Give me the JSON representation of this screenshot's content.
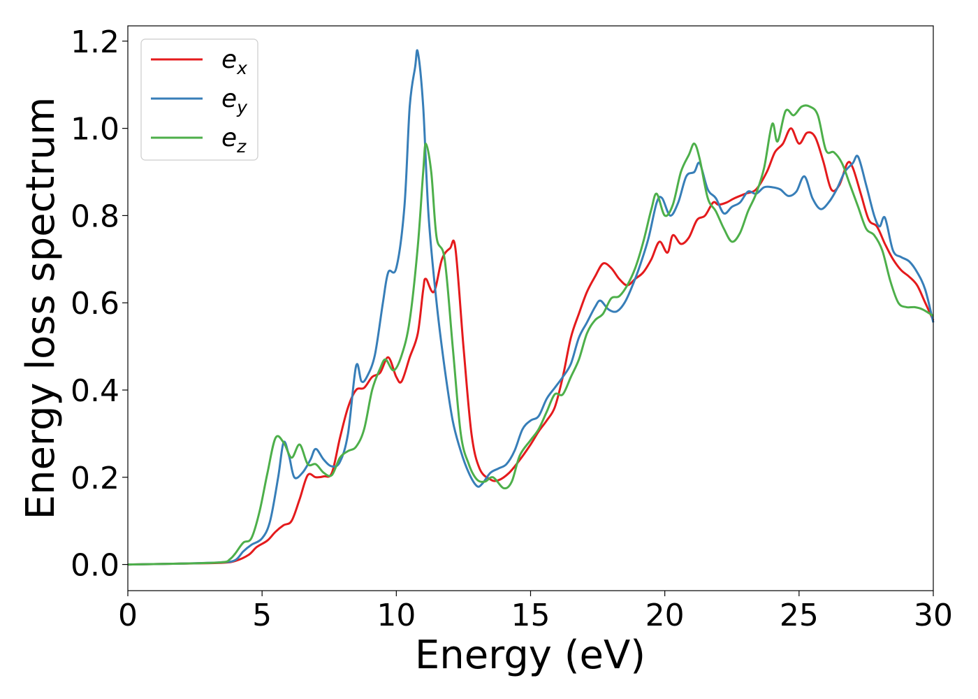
{
  "chart_data": {
    "type": "line",
    "title": "",
    "xlabel": "Energy (eV)",
    "ylabel": "Energy loss spectrum",
    "xlim": [
      0,
      30
    ],
    "ylim": [
      -0.06,
      1.235
    ],
    "xticks": [
      0,
      5,
      10,
      15,
      20,
      25,
      30
    ],
    "yticks": [
      0.0,
      0.2,
      0.4,
      0.6,
      0.8,
      1.0,
      1.2
    ],
    "xtick_labels": [
      "0",
      "5",
      "10",
      "15",
      "20",
      "25",
      "30"
    ],
    "ytick_labels": [
      "0.0",
      "0.2",
      "0.4",
      "0.6",
      "0.8",
      "1.0",
      "1.2"
    ],
    "grid": false,
    "legend_position": "top-left",
    "series": [
      {
        "name_base": "e",
        "name_sub": "x",
        "color": "#e41a1c",
        "points": [
          [
            0,
            0.0
          ],
          [
            2,
            0.002
          ],
          [
            3.5,
            0.004
          ],
          [
            4.0,
            0.008
          ],
          [
            4.5,
            0.022
          ],
          [
            4.8,
            0.04
          ],
          [
            5.2,
            0.055
          ],
          [
            5.5,
            0.075
          ],
          [
            5.8,
            0.09
          ],
          [
            6.1,
            0.1
          ],
          [
            6.4,
            0.15
          ],
          [
            6.7,
            0.205
          ],
          [
            7.0,
            0.2
          ],
          [
            7.3,
            0.202
          ],
          [
            7.6,
            0.21
          ],
          [
            7.9,
            0.29
          ],
          [
            8.2,
            0.36
          ],
          [
            8.5,
            0.4
          ],
          [
            8.8,
            0.405
          ],
          [
            9.1,
            0.43
          ],
          [
            9.4,
            0.44
          ],
          [
            9.7,
            0.475
          ],
          [
            10.0,
            0.43
          ],
          [
            10.2,
            0.42
          ],
          [
            10.5,
            0.475
          ],
          [
            10.8,
            0.53
          ],
          [
            11.0,
            0.63
          ],
          [
            11.1,
            0.655
          ],
          [
            11.4,
            0.625
          ],
          [
            11.7,
            0.7
          ],
          [
            12.0,
            0.725
          ],
          [
            12.2,
            0.725
          ],
          [
            12.5,
            0.5
          ],
          [
            12.8,
            0.3
          ],
          [
            13.1,
            0.22
          ],
          [
            13.5,
            0.195
          ],
          [
            13.8,
            0.193
          ],
          [
            14.2,
            0.21
          ],
          [
            14.6,
            0.24
          ],
          [
            15.0,
            0.275
          ],
          [
            15.3,
            0.305
          ],
          [
            15.6,
            0.33
          ],
          [
            15.9,
            0.36
          ],
          [
            16.2,
            0.43
          ],
          [
            16.5,
            0.52
          ],
          [
            16.8,
            0.575
          ],
          [
            17.1,
            0.625
          ],
          [
            17.4,
            0.66
          ],
          [
            17.7,
            0.69
          ],
          [
            18.0,
            0.68
          ],
          [
            18.3,
            0.655
          ],
          [
            18.6,
            0.64
          ],
          [
            18.9,
            0.655
          ],
          [
            19.2,
            0.67
          ],
          [
            19.5,
            0.7
          ],
          [
            19.8,
            0.74
          ],
          [
            20.1,
            0.715
          ],
          [
            20.3,
            0.755
          ],
          [
            20.6,
            0.735
          ],
          [
            20.9,
            0.75
          ],
          [
            21.2,
            0.79
          ],
          [
            21.5,
            0.8
          ],
          [
            21.8,
            0.83
          ],
          [
            22.0,
            0.825
          ],
          [
            22.3,
            0.83
          ],
          [
            22.6,
            0.84
          ],
          [
            23.0,
            0.85
          ],
          [
            23.4,
            0.86
          ],
          [
            23.8,
            0.9
          ],
          [
            24.1,
            0.945
          ],
          [
            24.4,
            0.965
          ],
          [
            24.7,
            1.0
          ],
          [
            25.0,
            0.965
          ],
          [
            25.3,
            0.99
          ],
          [
            25.6,
            0.98
          ],
          [
            25.9,
            0.925
          ],
          [
            26.2,
            0.86
          ],
          [
            26.5,
            0.87
          ],
          [
            26.8,
            0.92
          ],
          [
            27.0,
            0.91
          ],
          [
            27.3,
            0.85
          ],
          [
            27.6,
            0.79
          ],
          [
            27.9,
            0.775
          ],
          [
            28.2,
            0.735
          ],
          [
            28.5,
            0.7
          ],
          [
            28.8,
            0.675
          ],
          [
            29.1,
            0.66
          ],
          [
            29.4,
            0.64
          ],
          [
            29.7,
            0.6
          ],
          [
            30.0,
            0.56
          ]
        ]
      },
      {
        "name_base": "e",
        "name_sub": "y",
        "color": "#377eb8",
        "points": [
          [
            0,
            0.0
          ],
          [
            2,
            0.002
          ],
          [
            3.5,
            0.005
          ],
          [
            4.0,
            0.01
          ],
          [
            4.3,
            0.03
          ],
          [
            4.6,
            0.045
          ],
          [
            5.0,
            0.06
          ],
          [
            5.3,
            0.1
          ],
          [
            5.6,
            0.2
          ],
          [
            5.8,
            0.28
          ],
          [
            6.0,
            0.25
          ],
          [
            6.2,
            0.2
          ],
          [
            6.5,
            0.21
          ],
          [
            6.8,
            0.24
          ],
          [
            7.0,
            0.265
          ],
          [
            7.3,
            0.24
          ],
          [
            7.6,
            0.225
          ],
          [
            7.9,
            0.235
          ],
          [
            8.2,
            0.3
          ],
          [
            8.5,
            0.455
          ],
          [
            8.7,
            0.42
          ],
          [
            8.9,
            0.43
          ],
          [
            9.2,
            0.48
          ],
          [
            9.5,
            0.6
          ],
          [
            9.7,
            0.67
          ],
          [
            10.0,
            0.68
          ],
          [
            10.3,
            0.82
          ],
          [
            10.5,
            1.05
          ],
          [
            10.7,
            1.14
          ],
          [
            10.8,
            1.175
          ],
          [
            11.0,
            1.05
          ],
          [
            11.2,
            0.8
          ],
          [
            11.5,
            0.6
          ],
          [
            11.8,
            0.45
          ],
          [
            12.1,
            0.33
          ],
          [
            12.4,
            0.26
          ],
          [
            12.7,
            0.21
          ],
          [
            13.0,
            0.18
          ],
          [
            13.2,
            0.185
          ],
          [
            13.5,
            0.21
          ],
          [
            13.8,
            0.22
          ],
          [
            14.1,
            0.23
          ],
          [
            14.4,
            0.26
          ],
          [
            14.7,
            0.31
          ],
          [
            15.0,
            0.33
          ],
          [
            15.3,
            0.34
          ],
          [
            15.6,
            0.38
          ],
          [
            15.9,
            0.405
          ],
          [
            16.2,
            0.43
          ],
          [
            16.5,
            0.46
          ],
          [
            16.8,
            0.52
          ],
          [
            17.1,
            0.555
          ],
          [
            17.4,
            0.59
          ],
          [
            17.6,
            0.605
          ],
          [
            17.9,
            0.585
          ],
          [
            18.2,
            0.58
          ],
          [
            18.5,
            0.6
          ],
          [
            18.8,
            0.64
          ],
          [
            19.1,
            0.69
          ],
          [
            19.4,
            0.75
          ],
          [
            19.7,
            0.83
          ],
          [
            19.9,
            0.84
          ],
          [
            20.2,
            0.8
          ],
          [
            20.5,
            0.83
          ],
          [
            20.8,
            0.89
          ],
          [
            21.1,
            0.9
          ],
          [
            21.3,
            0.92
          ],
          [
            21.6,
            0.86
          ],
          [
            21.9,
            0.84
          ],
          [
            22.2,
            0.805
          ],
          [
            22.5,
            0.82
          ],
          [
            22.8,
            0.83
          ],
          [
            23.1,
            0.855
          ],
          [
            23.4,
            0.85
          ],
          [
            23.7,
            0.865
          ],
          [
            24.0,
            0.865
          ],
          [
            24.3,
            0.86
          ],
          [
            24.6,
            0.845
          ],
          [
            24.9,
            0.855
          ],
          [
            25.2,
            0.89
          ],
          [
            25.5,
            0.84
          ],
          [
            25.8,
            0.815
          ],
          [
            26.1,
            0.83
          ],
          [
            26.4,
            0.86
          ],
          [
            26.7,
            0.9
          ],
          [
            27.0,
            0.92
          ],
          [
            27.2,
            0.935
          ],
          [
            27.5,
            0.87
          ],
          [
            27.8,
            0.8
          ],
          [
            28.0,
            0.775
          ],
          [
            28.2,
            0.795
          ],
          [
            28.5,
            0.72
          ],
          [
            28.8,
            0.705
          ],
          [
            29.1,
            0.695
          ],
          [
            29.4,
            0.67
          ],
          [
            29.7,
            0.63
          ],
          [
            30.0,
            0.555
          ]
        ]
      },
      {
        "name_base": "e",
        "name_sub": "z",
        "color": "#4daf4a",
        "points": [
          [
            0,
            0.0
          ],
          [
            2,
            0.002
          ],
          [
            3.5,
            0.005
          ],
          [
            3.8,
            0.012
          ],
          [
            4.0,
            0.025
          ],
          [
            4.3,
            0.05
          ],
          [
            4.6,
            0.06
          ],
          [
            4.9,
            0.12
          ],
          [
            5.2,
            0.21
          ],
          [
            5.5,
            0.29
          ],
          [
            5.8,
            0.28
          ],
          [
            6.1,
            0.245
          ],
          [
            6.4,
            0.275
          ],
          [
            6.7,
            0.23
          ],
          [
            7.0,
            0.23
          ],
          [
            7.3,
            0.21
          ],
          [
            7.6,
            0.205
          ],
          [
            7.9,
            0.245
          ],
          [
            8.2,
            0.26
          ],
          [
            8.5,
            0.27
          ],
          [
            8.8,
            0.31
          ],
          [
            9.1,
            0.4
          ],
          [
            9.4,
            0.45
          ],
          [
            9.6,
            0.47
          ],
          [
            9.9,
            0.445
          ],
          [
            10.2,
            0.48
          ],
          [
            10.5,
            0.56
          ],
          [
            10.8,
            0.73
          ],
          [
            11.0,
            0.9
          ],
          [
            11.1,
            0.965
          ],
          [
            11.3,
            0.9
          ],
          [
            11.5,
            0.75
          ],
          [
            11.8,
            0.7
          ],
          [
            12.1,
            0.5
          ],
          [
            12.4,
            0.3
          ],
          [
            12.7,
            0.23
          ],
          [
            13.0,
            0.195
          ],
          [
            13.3,
            0.19
          ],
          [
            13.6,
            0.2
          ],
          [
            14.0,
            0.175
          ],
          [
            14.3,
            0.19
          ],
          [
            14.6,
            0.25
          ],
          [
            15.0,
            0.285
          ],
          [
            15.3,
            0.31
          ],
          [
            15.6,
            0.35
          ],
          [
            15.9,
            0.39
          ],
          [
            16.2,
            0.39
          ],
          [
            16.5,
            0.43
          ],
          [
            16.8,
            0.47
          ],
          [
            17.1,
            0.53
          ],
          [
            17.4,
            0.56
          ],
          [
            17.7,
            0.575
          ],
          [
            18.0,
            0.61
          ],
          [
            18.3,
            0.615
          ],
          [
            18.6,
            0.64
          ],
          [
            18.9,
            0.68
          ],
          [
            19.2,
            0.74
          ],
          [
            19.5,
            0.815
          ],
          [
            19.7,
            0.85
          ],
          [
            20.0,
            0.8
          ],
          [
            20.3,
            0.825
          ],
          [
            20.6,
            0.9
          ],
          [
            20.9,
            0.94
          ],
          [
            21.1,
            0.965
          ],
          [
            21.3,
            0.93
          ],
          [
            21.6,
            0.84
          ],
          [
            21.9,
            0.81
          ],
          [
            22.2,
            0.77
          ],
          [
            22.5,
            0.74
          ],
          [
            22.8,
            0.76
          ],
          [
            23.1,
            0.81
          ],
          [
            23.4,
            0.85
          ],
          [
            23.7,
            0.91
          ],
          [
            24.0,
            1.01
          ],
          [
            24.2,
            0.97
          ],
          [
            24.5,
            1.04
          ],
          [
            24.8,
            1.03
          ],
          [
            25.1,
            1.05
          ],
          [
            25.4,
            1.05
          ],
          [
            25.7,
            1.03
          ],
          [
            26.0,
            0.95
          ],
          [
            26.3,
            0.945
          ],
          [
            26.6,
            0.92
          ],
          [
            26.9,
            0.87
          ],
          [
            27.2,
            0.82
          ],
          [
            27.5,
            0.77
          ],
          [
            27.8,
            0.755
          ],
          [
            28.1,
            0.72
          ],
          [
            28.4,
            0.65
          ],
          [
            28.7,
            0.6
          ],
          [
            29.0,
            0.59
          ],
          [
            29.3,
            0.59
          ],
          [
            29.6,
            0.585
          ],
          [
            30.0,
            0.57
          ]
        ]
      }
    ]
  }
}
